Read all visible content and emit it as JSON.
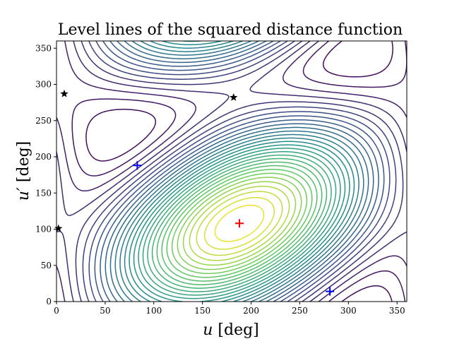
{
  "chart_data": {
    "type": "contour",
    "title": "Level lines of the squared distance function",
    "xlabel": {
      "var": "u",
      "unit": "[deg]"
    },
    "ylabel": {
      "var": "u′",
      "unit": "[deg]"
    },
    "xlim": [
      0,
      360
    ],
    "ylim": [
      0,
      360
    ],
    "xticks": [
      0,
      50,
      100,
      150,
      200,
      250,
      300,
      350
    ],
    "yticks": [
      0,
      50,
      100,
      150,
      200,
      250,
      300,
      350
    ],
    "grid": false,
    "colormap": [
      "#440154",
      "#3b528b",
      "#21918c",
      "#5ec962",
      "#fde725"
    ],
    "minimum_center": {
      "u": 188,
      "v": 108
    },
    "markers": [
      {
        "symbol": "plus",
        "color": "#ff0000",
        "u": 188,
        "v": 108
      },
      {
        "symbol": "plus",
        "color": "#0000ff",
        "u": 83,
        "v": 188
      },
      {
        "symbol": "plus",
        "color": "#0000ff",
        "u": 281,
        "v": 14
      },
      {
        "symbol": "star",
        "color": "#000000",
        "u": 8,
        "v": 287
      },
      {
        "symbol": "star",
        "color": "#000000",
        "u": 182,
        "v": 282
      },
      {
        "symbol": "star",
        "color": "#000000",
        "u": 2,
        "v": 101
      }
    ]
  }
}
